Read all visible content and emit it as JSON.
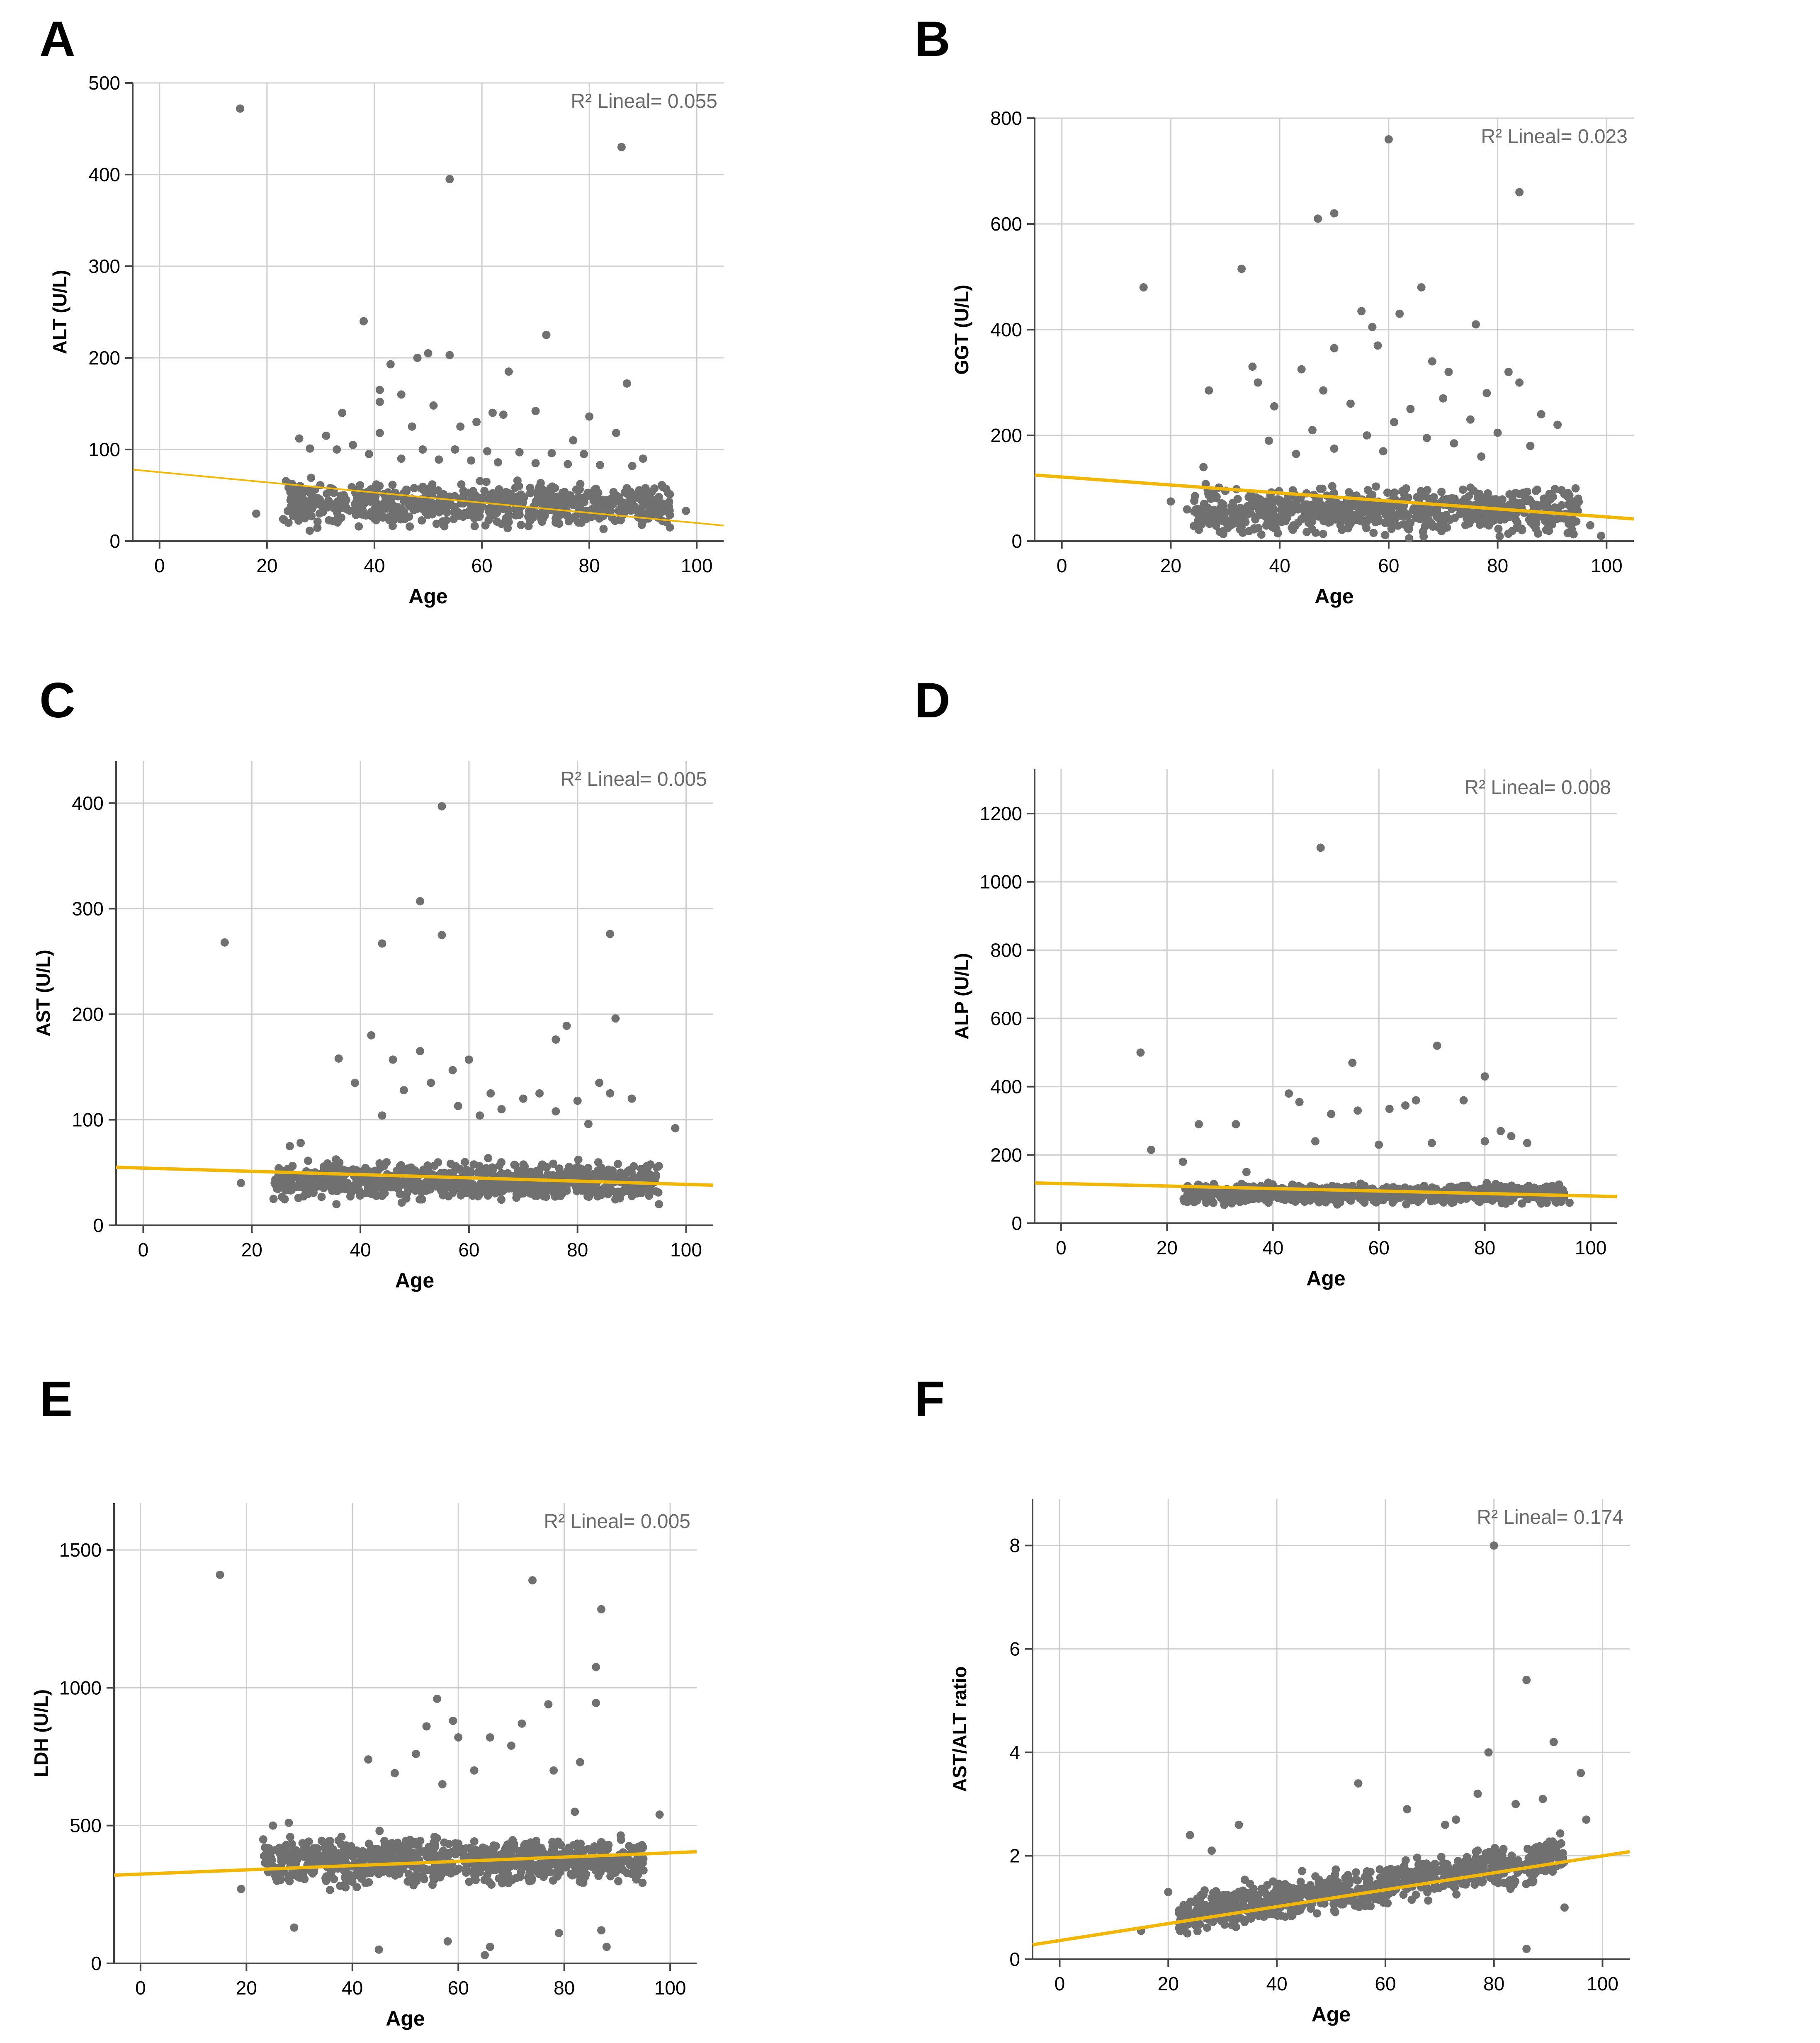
{
  "panels": [
    {
      "label": "A",
      "chart_data": {
        "type": "scatter",
        "xlabel": "Age",
        "ylabel": "ALT (U/L)",
        "xlim": [
          -5,
          105
        ],
        "ylim": [
          0,
          500
        ],
        "xticks": [
          0,
          20,
          40,
          60,
          80,
          100
        ],
        "yticks": [
          0,
          100,
          200,
          300,
          400,
          500
        ],
        "grid": true,
        "annotation": "R² Lineal= 0.055",
        "fit": {
          "x": [
            -5,
            105
          ],
          "y": [
            78,
            17
          ],
          "width": 4
        },
        "points": [
          [
            15,
            472
          ],
          [
            86,
            430
          ],
          [
            54,
            395
          ],
          [
            38,
            240
          ],
          [
            72,
            225
          ],
          [
            43,
            193
          ],
          [
            50,
            205
          ],
          [
            54,
            203
          ],
          [
            48,
            200
          ],
          [
            65,
            185
          ],
          [
            87,
            172
          ],
          [
            41,
            165
          ],
          [
            45,
            160
          ],
          [
            41,
            152
          ],
          [
            34,
            140
          ],
          [
            51,
            148
          ],
          [
            70,
            142
          ],
          [
            62,
            140
          ],
          [
            64,
            138
          ],
          [
            80,
            136
          ],
          [
            59,
            130
          ],
          [
            85,
            118
          ],
          [
            56,
            125
          ],
          [
            47,
            125
          ],
          [
            41,
            118
          ],
          [
            31,
            115
          ],
          [
            26,
            112
          ],
          [
            77,
            110
          ],
          [
            36,
            105
          ],
          [
            28,
            101
          ],
          [
            33,
            100
          ],
          [
            49,
            100
          ],
          [
            55,
            100
          ],
          [
            61,
            98
          ],
          [
            67,
            97
          ],
          [
            73,
            96
          ],
          [
            79,
            95
          ],
          [
            90,
            90
          ],
          [
            39,
            95
          ],
          [
            45,
            90
          ],
          [
            52,
            89
          ],
          [
            58,
            88
          ],
          [
            63,
            86
          ],
          [
            70,
            85
          ],
          [
            76,
            84
          ],
          [
            82,
            83
          ],
          [
            88,
            82
          ],
          [
            24,
            20
          ],
          [
            18,
            30
          ],
          [
            95,
            15
          ],
          [
            98,
            33
          ],
          [
            93,
            25
          ]
        ],
        "cloud": {
          "seed": 11,
          "n": 700,
          "xmin": 23,
          "xmax": 95,
          "ymin": 5,
          "ymax": 85,
          "center": 30,
          "spread": 24
        }
      }
    },
    {
      "label": "B",
      "chart_data": {
        "type": "scatter",
        "xlabel": "Age",
        "ylabel": "GGT (U/L)",
        "xlim": [
          -5,
          105
        ],
        "ylim": [
          0,
          800
        ],
        "xticks": [
          0,
          20,
          40,
          60,
          80,
          100
        ],
        "yticks": [
          0,
          200,
          400,
          600,
          800
        ],
        "grid": true,
        "annotation": "R² Lineal= 0.023",
        "fit": {
          "x": [
            -5,
            105
          ],
          "y": [
            125,
            42
          ],
          "width": 8
        },
        "points": [
          [
            60,
            760
          ],
          [
            84,
            660
          ],
          [
            50,
            620
          ],
          [
            47,
            610
          ],
          [
            15,
            480
          ],
          [
            33,
            515
          ],
          [
            66,
            480
          ],
          [
            62,
            430
          ],
          [
            55,
            435
          ],
          [
            76,
            410
          ],
          [
            57,
            405
          ],
          [
            35,
            330
          ],
          [
            50,
            365
          ],
          [
            58,
            370
          ],
          [
            68,
            340
          ],
          [
            44,
            325
          ],
          [
            71,
            320
          ],
          [
            82,
            320
          ],
          [
            84,
            300
          ],
          [
            36,
            300
          ],
          [
            48,
            285
          ],
          [
            27,
            285
          ],
          [
            78,
            280
          ],
          [
            70,
            270
          ],
          [
            53,
            260
          ],
          [
            39,
            255
          ],
          [
            64,
            250
          ],
          [
            88,
            240
          ],
          [
            75,
            230
          ],
          [
            61,
            225
          ],
          [
            91,
            220
          ],
          [
            46,
            210
          ],
          [
            80,
            205
          ],
          [
            56,
            200
          ],
          [
            67,
            195
          ],
          [
            38,
            190
          ],
          [
            72,
            185
          ],
          [
            86,
            180
          ],
          [
            50,
            175
          ],
          [
            59,
            170
          ],
          [
            43,
            165
          ],
          [
            77,
            160
          ],
          [
            26,
            140
          ],
          [
            30,
            95
          ],
          [
            20,
            75
          ],
          [
            23,
            60
          ],
          [
            97,
            30
          ],
          [
            99,
            10
          ]
        ],
        "cloud": {
          "seed": 23,
          "n": 750,
          "xmin": 24,
          "xmax": 95,
          "ymin": 3,
          "ymax": 150,
          "center": 40,
          "spread": 45
        }
      }
    },
    {
      "label": "C",
      "chart_data": {
        "type": "scatter",
        "xlabel": "Age",
        "ylabel": "AST (U/L)",
        "xlim": [
          -5,
          105
        ],
        "ylim": [
          0,
          440
        ],
        "xticks": [
          0,
          20,
          40,
          60,
          80,
          100
        ],
        "yticks": [
          0,
          100,
          200,
          300,
          400
        ],
        "grid": true,
        "annotation": "R² Lineal= 0.005",
        "fit": {
          "x": [
            -5,
            105
          ],
          "y": [
            55,
            38
          ],
          "width": 8
        },
        "points": [
          [
            55,
            397
          ],
          [
            51,
            307
          ],
          [
            15,
            268
          ],
          [
            44,
            267
          ],
          [
            55,
            275
          ],
          [
            86,
            276
          ],
          [
            87,
            196
          ],
          [
            78,
            189
          ],
          [
            76,
            176
          ],
          [
            42,
            180
          ],
          [
            36,
            158
          ],
          [
            51,
            165
          ],
          [
            46,
            157
          ],
          [
            60,
            157
          ],
          [
            57,
            147
          ],
          [
            39,
            135
          ],
          [
            53,
            135
          ],
          [
            64,
            125
          ],
          [
            73,
            125
          ],
          [
            84,
            135
          ],
          [
            86,
            125
          ],
          [
            48,
            128
          ],
          [
            70,
            120
          ],
          [
            80,
            118
          ],
          [
            90,
            120
          ],
          [
            58,
            113
          ],
          [
            66,
            110
          ],
          [
            76,
            108
          ],
          [
            44,
            104
          ],
          [
            62,
            104
          ],
          [
            98,
            92
          ],
          [
            82,
            96
          ],
          [
            29,
            78
          ],
          [
            27,
            75
          ],
          [
            18,
            40
          ],
          [
            24,
            25
          ],
          [
            95,
            20
          ]
        ],
        "cloud": {
          "seed": 37,
          "n": 780,
          "xmin": 24,
          "xmax": 95,
          "ymin": 12,
          "ymax": 95,
          "center": 35,
          "spread": 18
        }
      }
    },
    {
      "label": "D",
      "chart_data": {
        "type": "scatter",
        "xlabel": "Age",
        "ylabel": "ALP (U/L)",
        "xlim": [
          -5,
          105
        ],
        "ylim": [
          0,
          1330
        ],
        "xticks": [
          0,
          20,
          40,
          60,
          80,
          100
        ],
        "yticks": [
          0,
          200,
          400,
          600,
          800,
          1000,
          1200
        ],
        "grid": true,
        "annotation": "R² Lineal= 0.008",
        "fit": {
          "x": [
            -5,
            105
          ],
          "y": [
            118,
            78
          ],
          "width": 8
        },
        "points": [
          [
            49,
            1100
          ],
          [
            71,
            520
          ],
          [
            15,
            500
          ],
          [
            80,
            430
          ],
          [
            55,
            470
          ],
          [
            43,
            380
          ],
          [
            45,
            355
          ],
          [
            67,
            360
          ],
          [
            76,
            360
          ],
          [
            62,
            335
          ],
          [
            65,
            345
          ],
          [
            51,
            320
          ],
          [
            26,
            290
          ],
          [
            33,
            290
          ],
          [
            56,
            330
          ],
          [
            83,
            270
          ],
          [
            85,
            255
          ],
          [
            80,
            240
          ],
          [
            88,
            235
          ],
          [
            48,
            240
          ],
          [
            70,
            235
          ],
          [
            60,
            230
          ],
          [
            17,
            215
          ],
          [
            23,
            180
          ],
          [
            35,
            150
          ],
          [
            96,
            60
          ]
        ],
        "cloud": {
          "seed": 41,
          "n": 780,
          "xmin": 23,
          "xmax": 95,
          "ymin": 20,
          "ymax": 200,
          "center": 75,
          "spread": 28
        }
      }
    },
    {
      "label": "E",
      "chart_data": {
        "type": "scatter",
        "xlabel": "Age",
        "ylabel": "LDH (U/L)",
        "xlim": [
          -5,
          105
        ],
        "ylim": [
          0,
          1670
        ],
        "xticks": [
          0,
          20,
          40,
          60,
          80,
          100
        ],
        "yticks": [
          0,
          500,
          1000,
          1500
        ],
        "grid": true,
        "annotation": "R² Lineal= 0.005",
        "fit": {
          "x": [
            -5,
            105
          ],
          "y": [
            320,
            405
          ],
          "width": 8
        },
        "points": [
          [
            15,
            1410
          ],
          [
            74,
            1390
          ],
          [
            87,
            1285
          ],
          [
            86,
            1075
          ],
          [
            86,
            945
          ],
          [
            56,
            960
          ],
          [
            77,
            940
          ],
          [
            59,
            880
          ],
          [
            54,
            860
          ],
          [
            72,
            870
          ],
          [
            66,
            820
          ],
          [
            60,
            820
          ],
          [
            70,
            790
          ],
          [
            43,
            740
          ],
          [
            52,
            760
          ],
          [
            83,
            730
          ],
          [
            78,
            700
          ],
          [
            48,
            690
          ],
          [
            63,
            700
          ],
          [
            57,
            650
          ],
          [
            98,
            540
          ],
          [
            82,
            550
          ],
          [
            28,
            510
          ],
          [
            25,
            500
          ],
          [
            19,
            270
          ],
          [
            29,
            130
          ],
          [
            45,
            50
          ],
          [
            58,
            80
          ],
          [
            65,
            30
          ],
          [
            66,
            60
          ],
          [
            87,
            120
          ],
          [
            79,
            110
          ],
          [
            88,
            60
          ]
        ],
        "cloud": {
          "seed": 53,
          "n": 780,
          "xmin": 23,
          "xmax": 95,
          "ymin": 130,
          "ymax": 620,
          "center": 340,
          "spread": 90
        }
      }
    },
    {
      "label": "F",
      "chart_data": {
        "type": "scatter",
        "xlabel": "Age",
        "ylabel": "AST/ALT ratio",
        "xlim": [
          -5,
          105
        ],
        "ylim": [
          0,
          8.9
        ],
        "xticks": [
          0,
          20,
          40,
          60,
          80,
          100
        ],
        "yticks": [
          0,
          2,
          4,
          6,
          8
        ],
        "grid": true,
        "annotation": "R² Lineal= 0.174",
        "fit": {
          "x": [
            -5,
            105
          ],
          "y": [
            0.28,
            2.08
          ],
          "width": 8
        },
        "points": [
          [
            80,
            8.0
          ],
          [
            86,
            5.4
          ],
          [
            91,
            4.2
          ],
          [
            79,
            4.0
          ],
          [
            96,
            3.6
          ],
          [
            55,
            3.4
          ],
          [
            77,
            3.2
          ],
          [
            89,
            3.1
          ],
          [
            84,
            3.0
          ],
          [
            97,
            2.7
          ],
          [
            33,
            2.6
          ],
          [
            64,
            2.9
          ],
          [
            71,
            2.6
          ],
          [
            73,
            2.7
          ],
          [
            24,
            2.4
          ],
          [
            28,
            2.1
          ],
          [
            20,
            1.3
          ],
          [
            15,
            0.55
          ],
          [
            86,
            0.2
          ],
          [
            93,
            1.0
          ],
          [
            25,
            1.1
          ],
          [
            27,
            0.8
          ]
        ],
        "cloud": {
          "seed": 67,
          "n": 780,
          "xmin": 22,
          "xmax": 93,
          "ymin": 0.4,
          "ymax": 3.2,
          "center": 1.3,
          "spread": 0.42,
          "trend": 0.016
        }
      }
    }
  ]
}
